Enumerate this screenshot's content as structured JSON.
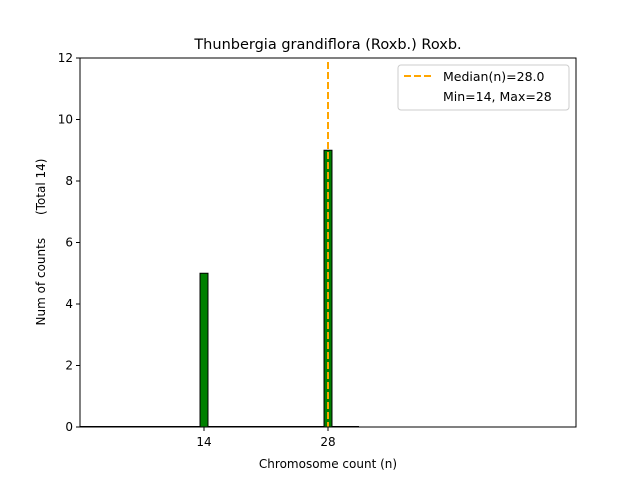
{
  "chart_data": {
    "type": "bar",
    "title": "Thunbergia grandiflora (Roxb.) Roxb.",
    "xlabel": "Chromosome count (n)",
    "ylabel": "Num of counts      (Total 14)",
    "xlim": [
      0,
      56
    ],
    "ylim": [
      0,
      12
    ],
    "x_ticks": [
      14,
      28
    ],
    "y_ticks": [
      0,
      2,
      4,
      6,
      8,
      10,
      12
    ],
    "bars": [
      {
        "x": 14,
        "value": 5
      },
      {
        "x": 28,
        "value": 9
      }
    ],
    "bar_width": 0.9,
    "baseline_extent": [
      0,
      31.5
    ],
    "bar_color": "#008000",
    "median": 28.0,
    "median_color": "#FFA500",
    "legend": {
      "placement": "top-right",
      "entries": [
        "Median(n)=28.0",
        "Min=14, Max=28"
      ]
    }
  }
}
